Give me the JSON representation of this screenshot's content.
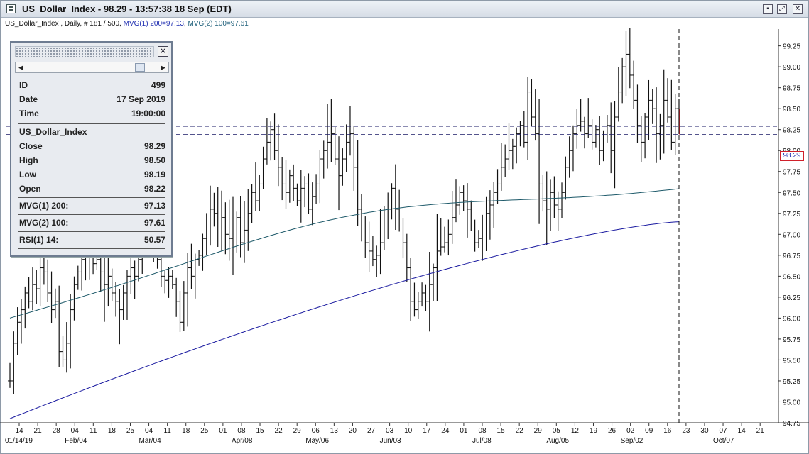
{
  "window": {
    "title": "US_Dollar_Index - 98.29 - 13:57:38  18 Sep (EDT)"
  },
  "subtitle": {
    "prefix": "US_Dollar_Index , Daily, # 181 / 500, ",
    "mvg1": "MVG(1) 200=97.13",
    "sep": ", ",
    "mvg2": "MVG(2) 100=97.61"
  },
  "info_panel": {
    "rows_top": [
      {
        "label": "ID",
        "value": "499"
      },
      {
        "label": "Date",
        "value": "17 Sep 2019"
      },
      {
        "label": "Time",
        "value": "19:00:00"
      }
    ],
    "symbol": "US_Dollar_Index",
    "rows_ohlc": [
      {
        "label": "Close",
        "value": "98.29"
      },
      {
        "label": "High",
        "value": "98.50"
      },
      {
        "label": "Low",
        "value": "98.19"
      },
      {
        "label": "Open",
        "value": "98.22"
      }
    ],
    "mvg1": {
      "label": "MVG(1) 200:",
      "value": "97.13"
    },
    "mvg2": {
      "label": "MVG(2) 100:",
      "value": "97.61"
    },
    "rsi": {
      "label": "RSI(1) 14:",
      "value": "50.57"
    }
  },
  "price_tag": "98.29",
  "colors": {
    "bars": "#111111",
    "mvg1": "#1a1aa0",
    "mvg2": "#1e5a6a",
    "dash": "#1a1a66",
    "price_tag_border": "#d0202a"
  },
  "chart_data": {
    "type": "ohlc",
    "ylim": [
      94.75,
      99.45
    ],
    "y_ticks": [
      "94.75",
      "95.00",
      "95.25",
      "95.50",
      "95.75",
      "96.00",
      "96.25",
      "96.50",
      "96.75",
      "97.00",
      "97.25",
      "97.50",
      "97.75",
      "98.00",
      "98.25",
      "98.50",
      "98.75",
      "99.00",
      "99.25"
    ],
    "x_tick_days": [
      "14",
      "21",
      "28",
      "04",
      "11",
      "18",
      "25",
      "04",
      "11",
      "18",
      "25",
      "01",
      "08",
      "15",
      "22",
      "29",
      "06",
      "13",
      "20",
      "27",
      "03",
      "10",
      "17",
      "24",
      "01",
      "08",
      "15",
      "22",
      "29",
      "05",
      "12",
      "19",
      "26",
      "02",
      "09",
      "16",
      "23",
      "30",
      "07",
      "14",
      "21"
    ],
    "x_month_labels": [
      "01/14/19",
      "Feb/04",
      "Mar/04",
      "Apr/08",
      "May/06",
      "Jun/03",
      "Jul/08",
      "Aug/05",
      "Sep/02",
      "Oct/07"
    ],
    "x_month_label_positions": [
      0,
      3,
      7,
      12,
      16,
      20,
      25,
      29,
      33,
      38
    ],
    "horizontal_lines": [
      98.29,
      98.19
    ],
    "last_bar_index": 181,
    "bars_closes": [
      95.25,
      95.7,
      95.95,
      96.1,
      96.3,
      96.2,
      96.4,
      96.35,
      96.6,
      96.55,
      96.3,
      96.1,
      96.2,
      95.6,
      95.5,
      95.7,
      96.1,
      96.4,
      96.55,
      96.7,
      96.8,
      96.75,
      96.65,
      96.7,
      96.55,
      96.4,
      96.5,
      96.3,
      96.2,
      96.1,
      96.3,
      96.5,
      96.6,
      96.5,
      96.7,
      96.85,
      96.95,
      97.0,
      96.8,
      96.7,
      96.5,
      96.45,
      96.5,
      96.4,
      96.2,
      95.95,
      96.3,
      96.6,
      96.5,
      96.7,
      96.75,
      96.95,
      97.1,
      97.3,
      97.25,
      97.1,
      97.2,
      97.0,
      96.95,
      97.1,
      97.2,
      96.9,
      97.05,
      97.25,
      97.5,
      97.4,
      97.6,
      97.9,
      98.1,
      98.25,
      98.0,
      97.8,
      97.6,
      97.5,
      97.7,
      97.55,
      97.4,
      97.55,
      97.6,
      97.3,
      97.45,
      97.6,
      97.9,
      98.0,
      98.1,
      98.2,
      97.9,
      97.7,
      97.9,
      98.1,
      98.2,
      97.8,
      97.3,
      97.1,
      96.9,
      96.8,
      96.7,
      96.75,
      96.9,
      97.1,
      97.3,
      97.55,
      97.3,
      97.1,
      96.9,
      96.6,
      96.2,
      96.1,
      96.2,
      96.3,
      96.2,
      96.4,
      96.6,
      96.8,
      96.85,
      96.9,
      97.0,
      97.2,
      97.35,
      97.5,
      97.4,
      97.3,
      97.1,
      96.9,
      96.95,
      97.1,
      97.25,
      97.35,
      97.5,
      97.6,
      97.8,
      97.9,
      98.0,
      98.05,
      98.2,
      98.3,
      98.1,
      98.7,
      98.4,
      98.2,
      97.6,
      97.4,
      97.3,
      97.5,
      97.35,
      97.3,
      97.5,
      97.8,
      98.0,
      98.2,
      98.3,
      98.35,
      98.2,
      98.3,
      98.1,
      98.25,
      98.0,
      98.15,
      98.3,
      98.0,
      98.4,
      98.7,
      99.0,
      99.15,
      98.9,
      98.6,
      98.3,
      98.1,
      98.4,
      98.6,
      98.5,
      98.2,
      98.3,
      98.6,
      98.4,
      98.1,
      98.5,
      98.29
    ]
  }
}
